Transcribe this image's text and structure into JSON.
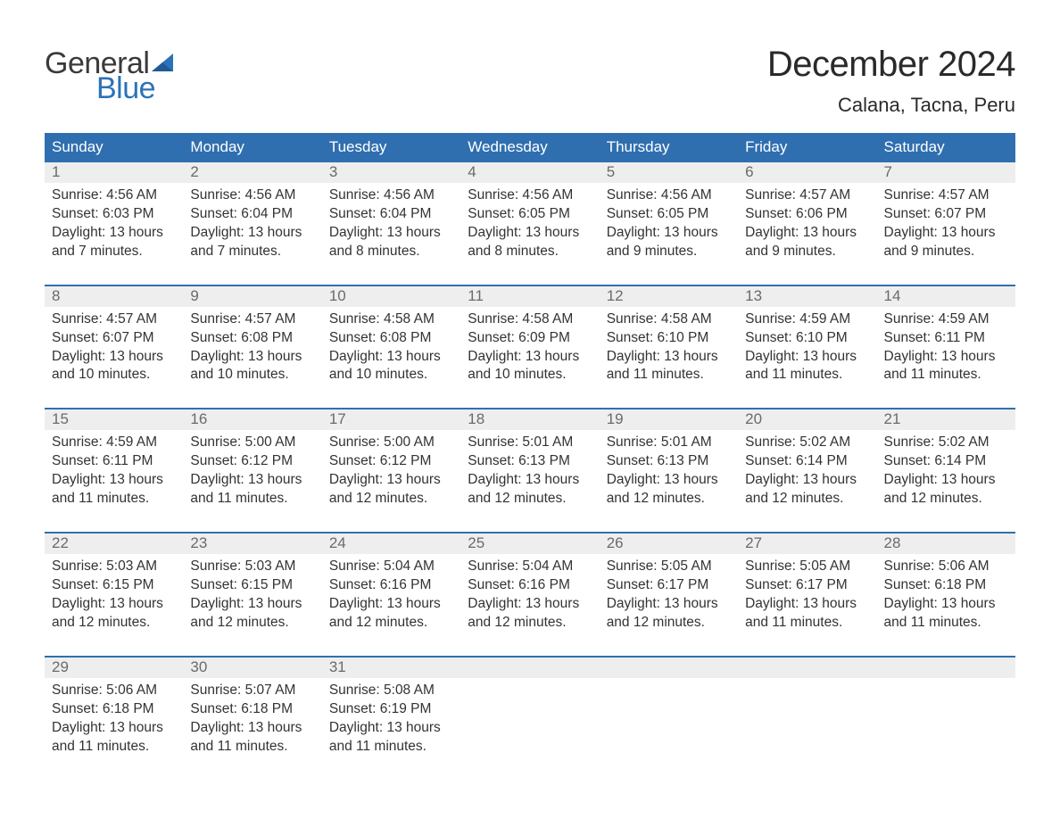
{
  "logo": {
    "word1": "General",
    "word2": "Blue",
    "word1_color": "#3a3a3a",
    "word2_color": "#2b73b8",
    "sail_color": "#2b73b8"
  },
  "title": "December 2024",
  "location": "Calana, Tacna, Peru",
  "colors": {
    "header_bg": "#2f6fb0",
    "header_text": "#ffffff",
    "week_border": "#2f6fb0",
    "daynum_bg": "#eeeeee",
    "daynum_text": "#6a6a6a",
    "body_text": "#333333",
    "page_bg": "#ffffff"
  },
  "fonts": {
    "title_size_pt": 30,
    "location_size_pt": 16,
    "dayheader_size_pt": 13,
    "cell_size_pt": 12
  },
  "day_headers": [
    "Sunday",
    "Monday",
    "Tuesday",
    "Wednesday",
    "Thursday",
    "Friday",
    "Saturday"
  ],
  "weeks": [
    [
      {
        "n": "1",
        "sr": "Sunrise: 4:56 AM",
        "ss": "Sunset: 6:03 PM",
        "d1": "Daylight: 13 hours",
        "d2": "and 7 minutes."
      },
      {
        "n": "2",
        "sr": "Sunrise: 4:56 AM",
        "ss": "Sunset: 6:04 PM",
        "d1": "Daylight: 13 hours",
        "d2": "and 7 minutes."
      },
      {
        "n": "3",
        "sr": "Sunrise: 4:56 AM",
        "ss": "Sunset: 6:04 PM",
        "d1": "Daylight: 13 hours",
        "d2": "and 8 minutes."
      },
      {
        "n": "4",
        "sr": "Sunrise: 4:56 AM",
        "ss": "Sunset: 6:05 PM",
        "d1": "Daylight: 13 hours",
        "d2": "and 8 minutes."
      },
      {
        "n": "5",
        "sr": "Sunrise: 4:56 AM",
        "ss": "Sunset: 6:05 PM",
        "d1": "Daylight: 13 hours",
        "d2": "and 9 minutes."
      },
      {
        "n": "6",
        "sr": "Sunrise: 4:57 AM",
        "ss": "Sunset: 6:06 PM",
        "d1": "Daylight: 13 hours",
        "d2": "and 9 minutes."
      },
      {
        "n": "7",
        "sr": "Sunrise: 4:57 AM",
        "ss": "Sunset: 6:07 PM",
        "d1": "Daylight: 13 hours",
        "d2": "and 9 minutes."
      }
    ],
    [
      {
        "n": "8",
        "sr": "Sunrise: 4:57 AM",
        "ss": "Sunset: 6:07 PM",
        "d1": "Daylight: 13 hours",
        "d2": "and 10 minutes."
      },
      {
        "n": "9",
        "sr": "Sunrise: 4:57 AM",
        "ss": "Sunset: 6:08 PM",
        "d1": "Daylight: 13 hours",
        "d2": "and 10 minutes."
      },
      {
        "n": "10",
        "sr": "Sunrise: 4:58 AM",
        "ss": "Sunset: 6:08 PM",
        "d1": "Daylight: 13 hours",
        "d2": "and 10 minutes."
      },
      {
        "n": "11",
        "sr": "Sunrise: 4:58 AM",
        "ss": "Sunset: 6:09 PM",
        "d1": "Daylight: 13 hours",
        "d2": "and 10 minutes."
      },
      {
        "n": "12",
        "sr": "Sunrise: 4:58 AM",
        "ss": "Sunset: 6:10 PM",
        "d1": "Daylight: 13 hours",
        "d2": "and 11 minutes."
      },
      {
        "n": "13",
        "sr": "Sunrise: 4:59 AM",
        "ss": "Sunset: 6:10 PM",
        "d1": "Daylight: 13 hours",
        "d2": "and 11 minutes."
      },
      {
        "n": "14",
        "sr": "Sunrise: 4:59 AM",
        "ss": "Sunset: 6:11 PM",
        "d1": "Daylight: 13 hours",
        "d2": "and 11 minutes."
      }
    ],
    [
      {
        "n": "15",
        "sr": "Sunrise: 4:59 AM",
        "ss": "Sunset: 6:11 PM",
        "d1": "Daylight: 13 hours",
        "d2": "and 11 minutes."
      },
      {
        "n": "16",
        "sr": "Sunrise: 5:00 AM",
        "ss": "Sunset: 6:12 PM",
        "d1": "Daylight: 13 hours",
        "d2": "and 11 minutes."
      },
      {
        "n": "17",
        "sr": "Sunrise: 5:00 AM",
        "ss": "Sunset: 6:12 PM",
        "d1": "Daylight: 13 hours",
        "d2": "and 12 minutes."
      },
      {
        "n": "18",
        "sr": "Sunrise: 5:01 AM",
        "ss": "Sunset: 6:13 PM",
        "d1": "Daylight: 13 hours",
        "d2": "and 12 minutes."
      },
      {
        "n": "19",
        "sr": "Sunrise: 5:01 AM",
        "ss": "Sunset: 6:13 PM",
        "d1": "Daylight: 13 hours",
        "d2": "and 12 minutes."
      },
      {
        "n": "20",
        "sr": "Sunrise: 5:02 AM",
        "ss": "Sunset: 6:14 PM",
        "d1": "Daylight: 13 hours",
        "d2": "and 12 minutes."
      },
      {
        "n": "21",
        "sr": "Sunrise: 5:02 AM",
        "ss": "Sunset: 6:14 PM",
        "d1": "Daylight: 13 hours",
        "d2": "and 12 minutes."
      }
    ],
    [
      {
        "n": "22",
        "sr": "Sunrise: 5:03 AM",
        "ss": "Sunset: 6:15 PM",
        "d1": "Daylight: 13 hours",
        "d2": "and 12 minutes."
      },
      {
        "n": "23",
        "sr": "Sunrise: 5:03 AM",
        "ss": "Sunset: 6:15 PM",
        "d1": "Daylight: 13 hours",
        "d2": "and 12 minutes."
      },
      {
        "n": "24",
        "sr": "Sunrise: 5:04 AM",
        "ss": "Sunset: 6:16 PM",
        "d1": "Daylight: 13 hours",
        "d2": "and 12 minutes."
      },
      {
        "n": "25",
        "sr": "Sunrise: 5:04 AM",
        "ss": "Sunset: 6:16 PM",
        "d1": "Daylight: 13 hours",
        "d2": "and 12 minutes."
      },
      {
        "n": "26",
        "sr": "Sunrise: 5:05 AM",
        "ss": "Sunset: 6:17 PM",
        "d1": "Daylight: 13 hours",
        "d2": "and 12 minutes."
      },
      {
        "n": "27",
        "sr": "Sunrise: 5:05 AM",
        "ss": "Sunset: 6:17 PM",
        "d1": "Daylight: 13 hours",
        "d2": "and 11 minutes."
      },
      {
        "n": "28",
        "sr": "Sunrise: 5:06 AM",
        "ss": "Sunset: 6:18 PM",
        "d1": "Daylight: 13 hours",
        "d2": "and 11 minutes."
      }
    ],
    [
      {
        "n": "29",
        "sr": "Sunrise: 5:06 AM",
        "ss": "Sunset: 6:18 PM",
        "d1": "Daylight: 13 hours",
        "d2": "and 11 minutes."
      },
      {
        "n": "30",
        "sr": "Sunrise: 5:07 AM",
        "ss": "Sunset: 6:18 PM",
        "d1": "Daylight: 13 hours",
        "d2": "and 11 minutes."
      },
      {
        "n": "31",
        "sr": "Sunrise: 5:08 AM",
        "ss": "Sunset: 6:19 PM",
        "d1": "Daylight: 13 hours",
        "d2": "and 11 minutes."
      },
      null,
      null,
      null,
      null
    ]
  ]
}
